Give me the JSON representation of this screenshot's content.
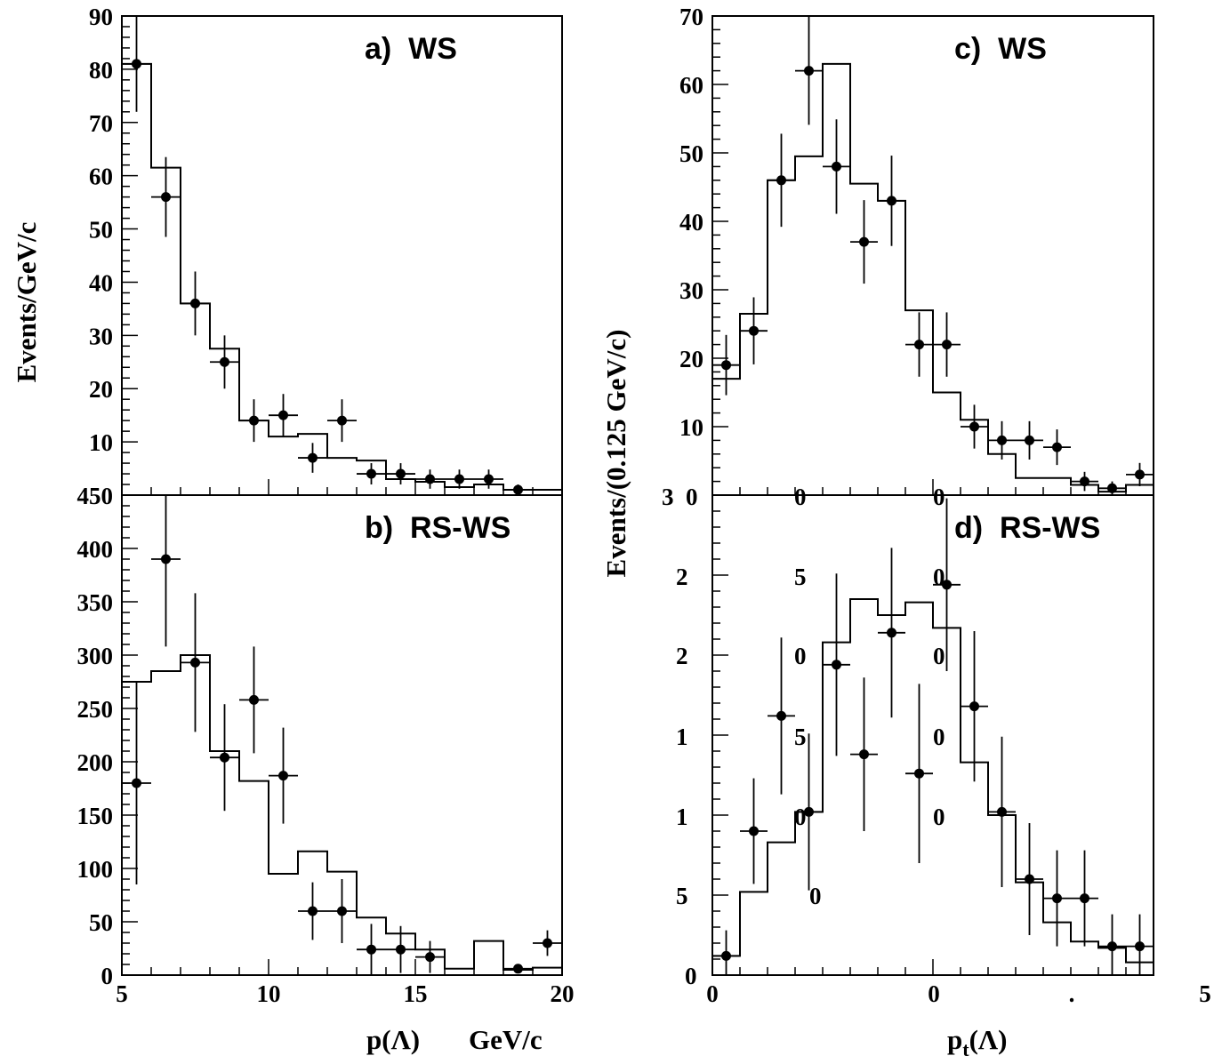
{
  "chart_data": [
    {
      "id": "a",
      "type": "scatter",
      "label": "a)  WS",
      "xlim": [
        5,
        20
      ],
      "ylim": [
        0,
        90
      ],
      "y_ticks": [
        10,
        20,
        30,
        40,
        50,
        60,
        70,
        80,
        90
      ],
      "x": [
        5.5,
        6.5,
        7.5,
        8.5,
        9.5,
        10.5,
        11.5,
        12.5,
        13.5,
        14.5,
        15.5,
        16.5,
        17.5,
        18.5
      ],
      "y": [
        81,
        56,
        36,
        25,
        14,
        15,
        7,
        14,
        4,
        4,
        3,
        3,
        3,
        1
      ],
      "yerr": [
        9,
        7.5,
        6,
        5,
        4,
        4,
        2.8,
        4,
        2,
        2,
        1.8,
        1.8,
        1.8,
        1
      ],
      "hist_edges": [
        5,
        6,
        7,
        8,
        9,
        10,
        11,
        12,
        13,
        14,
        15,
        16,
        17,
        18,
        19,
        20
      ],
      "hist_values": [
        81,
        61.5,
        36,
        27.5,
        14,
        11,
        11.5,
        7,
        6.5,
        3,
        2.5,
        1.5,
        2,
        1,
        1
      ]
    },
    {
      "id": "b",
      "type": "scatter",
      "label": "b)  RS-WS",
      "xlim": [
        5,
        20
      ],
      "ylim": [
        0,
        450
      ],
      "y_ticks": [
        0,
        50,
        100,
        150,
        200,
        250,
        300,
        350,
        400,
        450
      ],
      "x_ticks": [
        5,
        10,
        15,
        20
      ],
      "xlabel_parts": [
        "p(Λ)",
        "GeV/c"
      ],
      "x": [
        5.5,
        6.5,
        7.5,
        8.5,
        9.5,
        10.5,
        11.5,
        12.5,
        13.5,
        14.5,
        15.5,
        18.5,
        19.5
      ],
      "y": [
        180,
        390,
        293,
        204,
        258,
        187,
        60,
        60,
        24,
        24,
        17,
        6,
        30
      ],
      "yerr": [
        95,
        82,
        65,
        50,
        50,
        45,
        27,
        30,
        24,
        22,
        15,
        4,
        12
      ],
      "hist_edges": [
        5,
        6,
        7,
        8,
        9,
        10,
        11,
        12,
        13,
        14,
        15,
        16,
        17,
        18,
        19,
        20
      ],
      "hist_values": [
        275,
        285,
        300,
        210,
        182,
        95,
        116,
        97,
        54,
        39,
        24,
        6,
        32,
        5,
        7
      ]
    },
    {
      "id": "c",
      "type": "scatter",
      "label": "c)  WS",
      "xlim": [
        0,
        16
      ],
      "ylim": [
        0,
        70
      ],
      "y_ticks": [
        10,
        20,
        30,
        40,
        50,
        60,
        70
      ],
      "x": [
        0.5,
        1.5,
        2.5,
        3.5,
        4.5,
        5.5,
        6.5,
        7.5,
        8.5,
        9.5,
        10.5,
        11.5,
        12.5,
        13.5,
        14.5,
        15.5
      ],
      "y": [
        19,
        24,
        46,
        62,
        48,
        37,
        43,
        22,
        22,
        10,
        8,
        8,
        7,
        2,
        1,
        3
      ],
      "yerr": [
        4.4,
        4.9,
        6.8,
        7.9,
        6.9,
        6.1,
        6.6,
        4.7,
        4.7,
        3.2,
        2.8,
        2.8,
        2.6,
        1.4,
        1,
        1.7
      ],
      "hist_edges": [
        0,
        1,
        2,
        3,
        4,
        5,
        6,
        7,
        8,
        9,
        10,
        11,
        12,
        13,
        14,
        15,
        16
      ],
      "hist_values": [
        17,
        26.5,
        46,
        49.5,
        63,
        45.5,
        43,
        27,
        15,
        11,
        6,
        2.5,
        2.5,
        1.5,
        0.5,
        1.5
      ]
    },
    {
      "id": "d",
      "type": "scatter",
      "label": "d)  RS-WS",
      "xlim": [
        0,
        16
      ],
      "ylim": [
        0,
        30
      ],
      "x": [
        0.5,
        1.5,
        2.5,
        3.5,
        4.5,
        5.5,
        6.5,
        7.5,
        8.5,
        9.5,
        10.5,
        11.5,
        12.5,
        13.5,
        14.5,
        15.5
      ],
      "y": [
        1.2,
        9,
        16.2,
        10.2,
        19.4,
        13.8,
        21.4,
        12.6,
        24.4,
        16.8,
        10.2,
        6,
        4.8,
        4.8,
        1.8,
        1.8
      ],
      "yerr": [
        1.6,
        3.3,
        4.9,
        4.9,
        5.7,
        4.8,
        5.3,
        5.6,
        5.4,
        4.7,
        4.7,
        3.5,
        3,
        3,
        2,
        2
      ],
      "hist_edges": [
        0,
        1,
        2,
        3,
        4,
        5,
        6,
        7,
        8,
        9,
        10,
        11,
        12,
        13,
        14,
        15,
        16
      ],
      "hist_values": [
        1.2,
        5.2,
        8.3,
        10.2,
        20.8,
        23.5,
        22.5,
        23.3,
        21.7,
        13.3,
        10,
        5.8,
        3.3,
        2.1,
        1.7,
        0.8
      ]
    }
  ],
  "left_axis": {
    "ylabel": "Events/GeV/c",
    "xlabel_p": "p(Λ)",
    "xlabel_unit": "GeV/c"
  },
  "right_axis": {
    "ylabel": "Events/(0.125 GeV/c)",
    "xlabel": "p",
    "xlabel_sub": "t",
    "xlabel_tail": "(Λ)",
    "c_bottom_tick": "3  0",
    "d_y_ticks": [
      "2",
      "2",
      "1",
      "1",
      "5",
      "0"
    ],
    "x_ticks": [
      "0",
      "0",
      ".",
      "5"
    ],
    "stray_digits": [
      "0",
      "0",
      "5",
      "0",
      "0",
      "0",
      "5",
      "0",
      "0",
      "0",
      "0"
    ]
  }
}
